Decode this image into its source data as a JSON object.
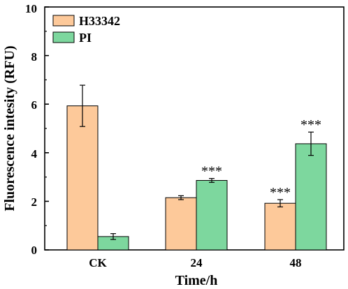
{
  "chart_data": {
    "type": "bar",
    "categories": [
      "CK",
      "24",
      "48"
    ],
    "series": [
      {
        "name": "H33342",
        "color": "#FDC99A",
        "values": [
          5.93,
          2.15,
          1.92
        ],
        "errors": [
          0.85,
          0.08,
          0.15
        ],
        "annotations": [
          "",
          "",
          "***"
        ]
      },
      {
        "name": "PI",
        "color": "#7DD79E",
        "values": [
          0.55,
          2.86,
          4.37
        ],
        "errors": [
          0.12,
          0.08,
          0.48
        ],
        "annotations": [
          "",
          "***",
          "***"
        ]
      }
    ],
    "title": "",
    "xlabel": "Time/h",
    "ylabel": "Fluorescence intesity (RFU)",
    "ylim": [
      0,
      10
    ],
    "yticks": [
      "0",
      "2",
      "4",
      "6",
      "8",
      "10"
    ],
    "grid": false,
    "legend": "top-left"
  }
}
